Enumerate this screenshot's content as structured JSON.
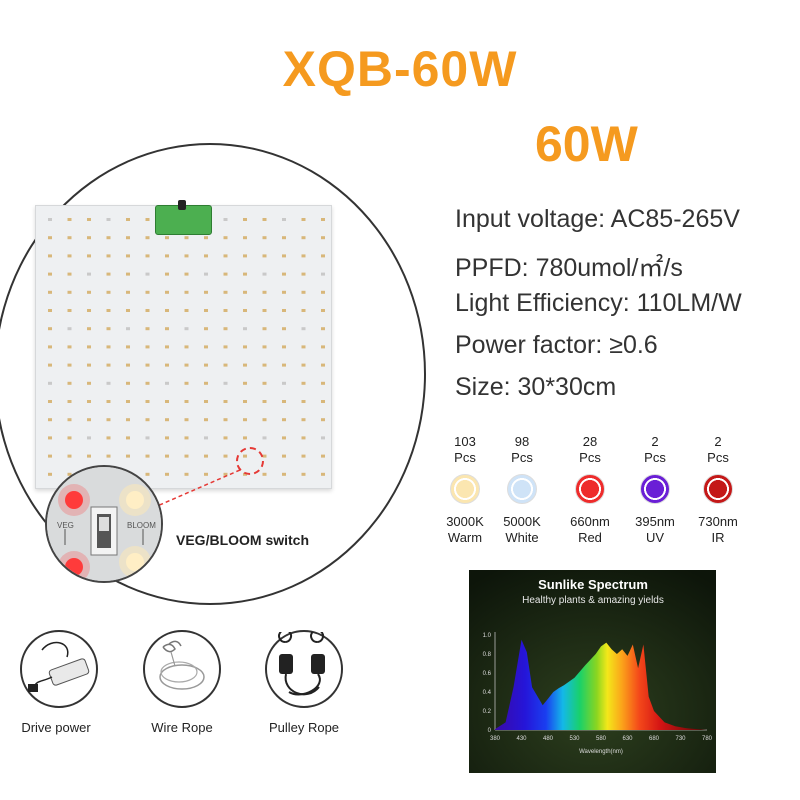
{
  "header": {
    "model": "XQB-60W",
    "wattage": "60W"
  },
  "specs": [
    "Input voltage: AC85-265V",
    "PPFD: 780umol/㎡/s",
    "Light Efficiency: 110LM/W",
    "Power factor: ≥0.6",
    "Size: 30*30cm"
  ],
  "switch_label": "VEG/BLOOM switch",
  "switch_markings": {
    "veg": "VEG",
    "bloom": "BLOOM"
  },
  "leds": [
    {
      "count": "103",
      "unit": "Pcs",
      "line1": "3000K",
      "line2": "Warm",
      "color": "#fbe6b0"
    },
    {
      "count": "98",
      "unit": "Pcs",
      "line1": "5000K",
      "line2": "White",
      "color": "#cfe3f7"
    },
    {
      "count": "28",
      "unit": "Pcs",
      "line1": "660nm",
      "line2": "Red",
      "color": "#ee2b2b"
    },
    {
      "count": "2",
      "unit": "Pcs",
      "line1": "395nm",
      "line2": "UV",
      "color": "#6a1fd6"
    },
    {
      "count": "2",
      "unit": "Pcs",
      "line1": "730nm",
      "line2": "IR",
      "color": "#c41818"
    }
  ],
  "accessories": [
    {
      "label": "Drive power",
      "icon": "power-adapter-icon"
    },
    {
      "label": "Wire Rope",
      "icon": "wire-rope-icon"
    },
    {
      "label": "Pulley Rope",
      "icon": "pulley-rope-icon"
    }
  ],
  "spectrum": {
    "title": "Sunlike Spectrum",
    "subtitle": "Healthy plants & amazing yields",
    "xlabel": "Wavelength(nm)",
    "x_ticks": [
      "380",
      "430",
      "480",
      "530",
      "580",
      "630",
      "680",
      "730",
      "780"
    ],
    "y_ticks": [
      "1.0",
      "0.8",
      "0.6",
      "0.4",
      "0.2",
      "0"
    ]
  },
  "chart_data": {
    "type": "area",
    "title": "Sunlike Spectrum",
    "subtitle": "Healthy plants & amazing yields",
    "xlabel": "Wavelength(nm)",
    "ylabel": "",
    "xlim": [
      380,
      780
    ],
    "ylim": [
      0,
      1.0
    ],
    "x": [
      380,
      400,
      415,
      430,
      440,
      450,
      470,
      480,
      490,
      500,
      510,
      530,
      550,
      570,
      580,
      590,
      600,
      610,
      620,
      630,
      640,
      650,
      660,
      670,
      680,
      690,
      700,
      720,
      740,
      760,
      780
    ],
    "values": [
      0.01,
      0.08,
      0.45,
      0.95,
      0.82,
      0.45,
      0.26,
      0.33,
      0.4,
      0.44,
      0.47,
      0.55,
      0.68,
      0.8,
      0.88,
      0.92,
      0.85,
      0.8,
      0.85,
      0.78,
      0.9,
      0.65,
      0.9,
      0.35,
      0.2,
      0.14,
      0.08,
      0.04,
      0.02,
      0.01,
      0.0
    ]
  }
}
